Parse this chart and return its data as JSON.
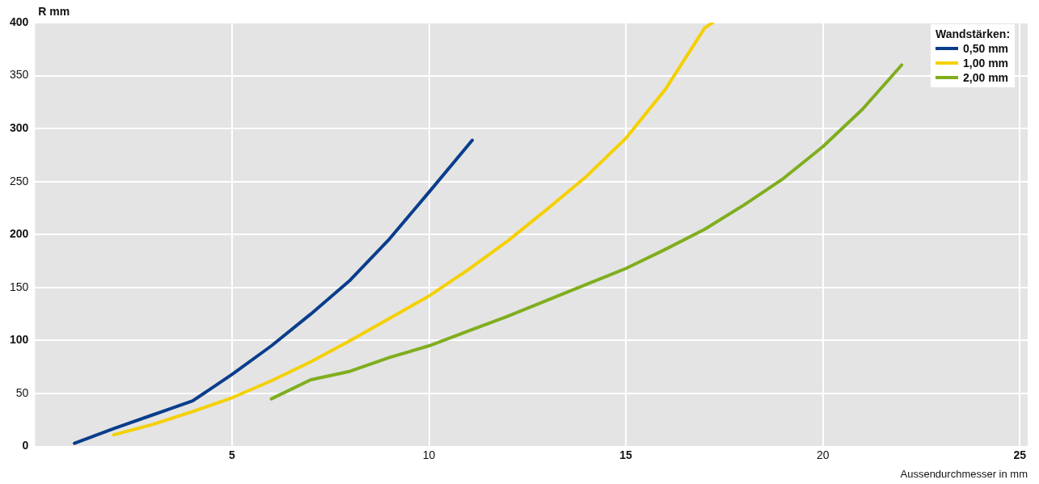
{
  "chart_data": {
    "type": "line",
    "xlabel": "Aussendurchmesser in mm",
    "ylabel": "R mm",
    "legend_title": "Wandstärken:",
    "xlim": [
      0,
      25.2
    ],
    "xticks": [
      5,
      10,
      15,
      20,
      25
    ],
    "ylim": [
      0,
      400
    ],
    "yticks": [
      0,
      50,
      100,
      150,
      200,
      250,
      300,
      350,
      400
    ],
    "grid": true,
    "legend": "top right",
    "marker": "none",
    "line_style": "solid",
    "series": [
      {
        "name": "0,50 mm",
        "color": "#0a3d8c",
        "x": [
          1,
          2,
          3,
          4,
          5,
          6,
          7,
          8,
          9,
          10,
          11.1
        ],
        "values": [
          3,
          17,
          30,
          43,
          68,
          95,
          125,
          157,
          196,
          240,
          289
        ]
      },
      {
        "name": "1,00 mm",
        "color": "#f5d000",
        "x": [
          2,
          3,
          4,
          5,
          6,
          7,
          8,
          9,
          10,
          11,
          12,
          13,
          14,
          15,
          16,
          17,
          17.2
        ],
        "values": [
          11,
          21,
          33,
          46,
          62,
          80,
          100,
          121,
          142,
          167,
          194,
          224,
          255,
          291,
          337,
          395,
          400
        ]
      },
      {
        "name": "2,00 mm",
        "color": "#7fae1e",
        "x": [
          6,
          7,
          8,
          9,
          10,
          11,
          12,
          13,
          14,
          15,
          16,
          17,
          18,
          19,
          20,
          21,
          22
        ],
        "values": [
          45,
          63,
          71,
          84,
          95,
          109,
          123,
          138,
          153,
          168,
          186,
          205,
          228,
          253,
          283,
          318,
          360
        ]
      }
    ]
  }
}
